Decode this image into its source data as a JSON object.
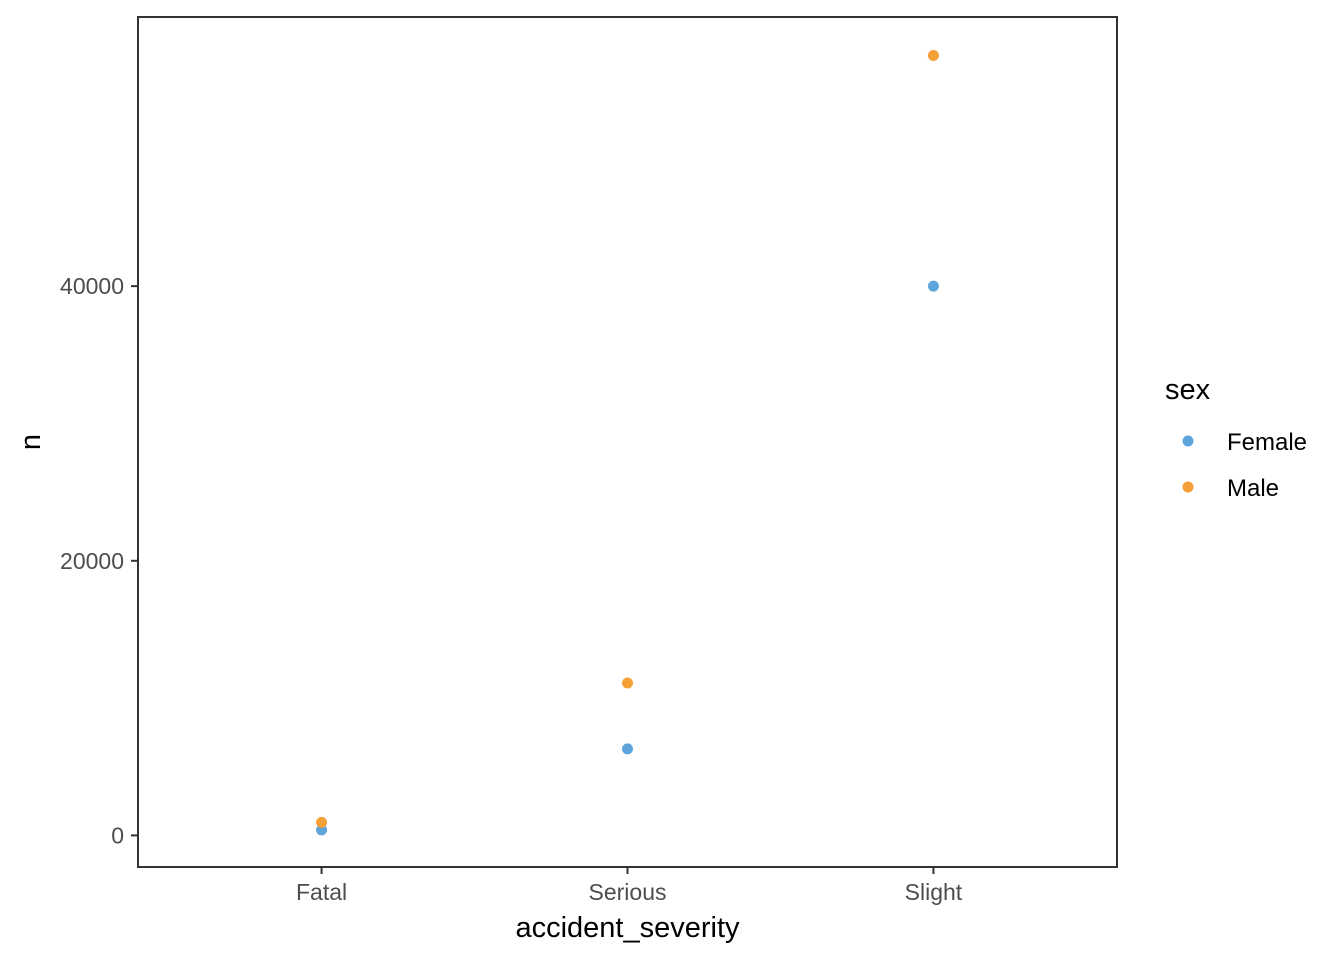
{
  "chart_data": {
    "type": "scatter",
    "title": "",
    "xlabel": "accident_severity",
    "ylabel": "n",
    "categories": [
      "Fatal",
      "Serious",
      "Slight"
    ],
    "ylim": [
      -2300,
      59600
    ],
    "yticks": [
      0,
      20000,
      40000
    ],
    "ytick_labels": [
      "0",
      "20000",
      "40000"
    ],
    "grid": false,
    "legend": {
      "title": "sex",
      "position": "right"
    },
    "series": [
      {
        "name": "Female",
        "color": "#5da5da",
        "values": [
          400,
          6300,
          40000
        ]
      },
      {
        "name": "Male",
        "color": "#f5a037",
        "values": [
          950,
          11100,
          56800
        ]
      }
    ]
  }
}
